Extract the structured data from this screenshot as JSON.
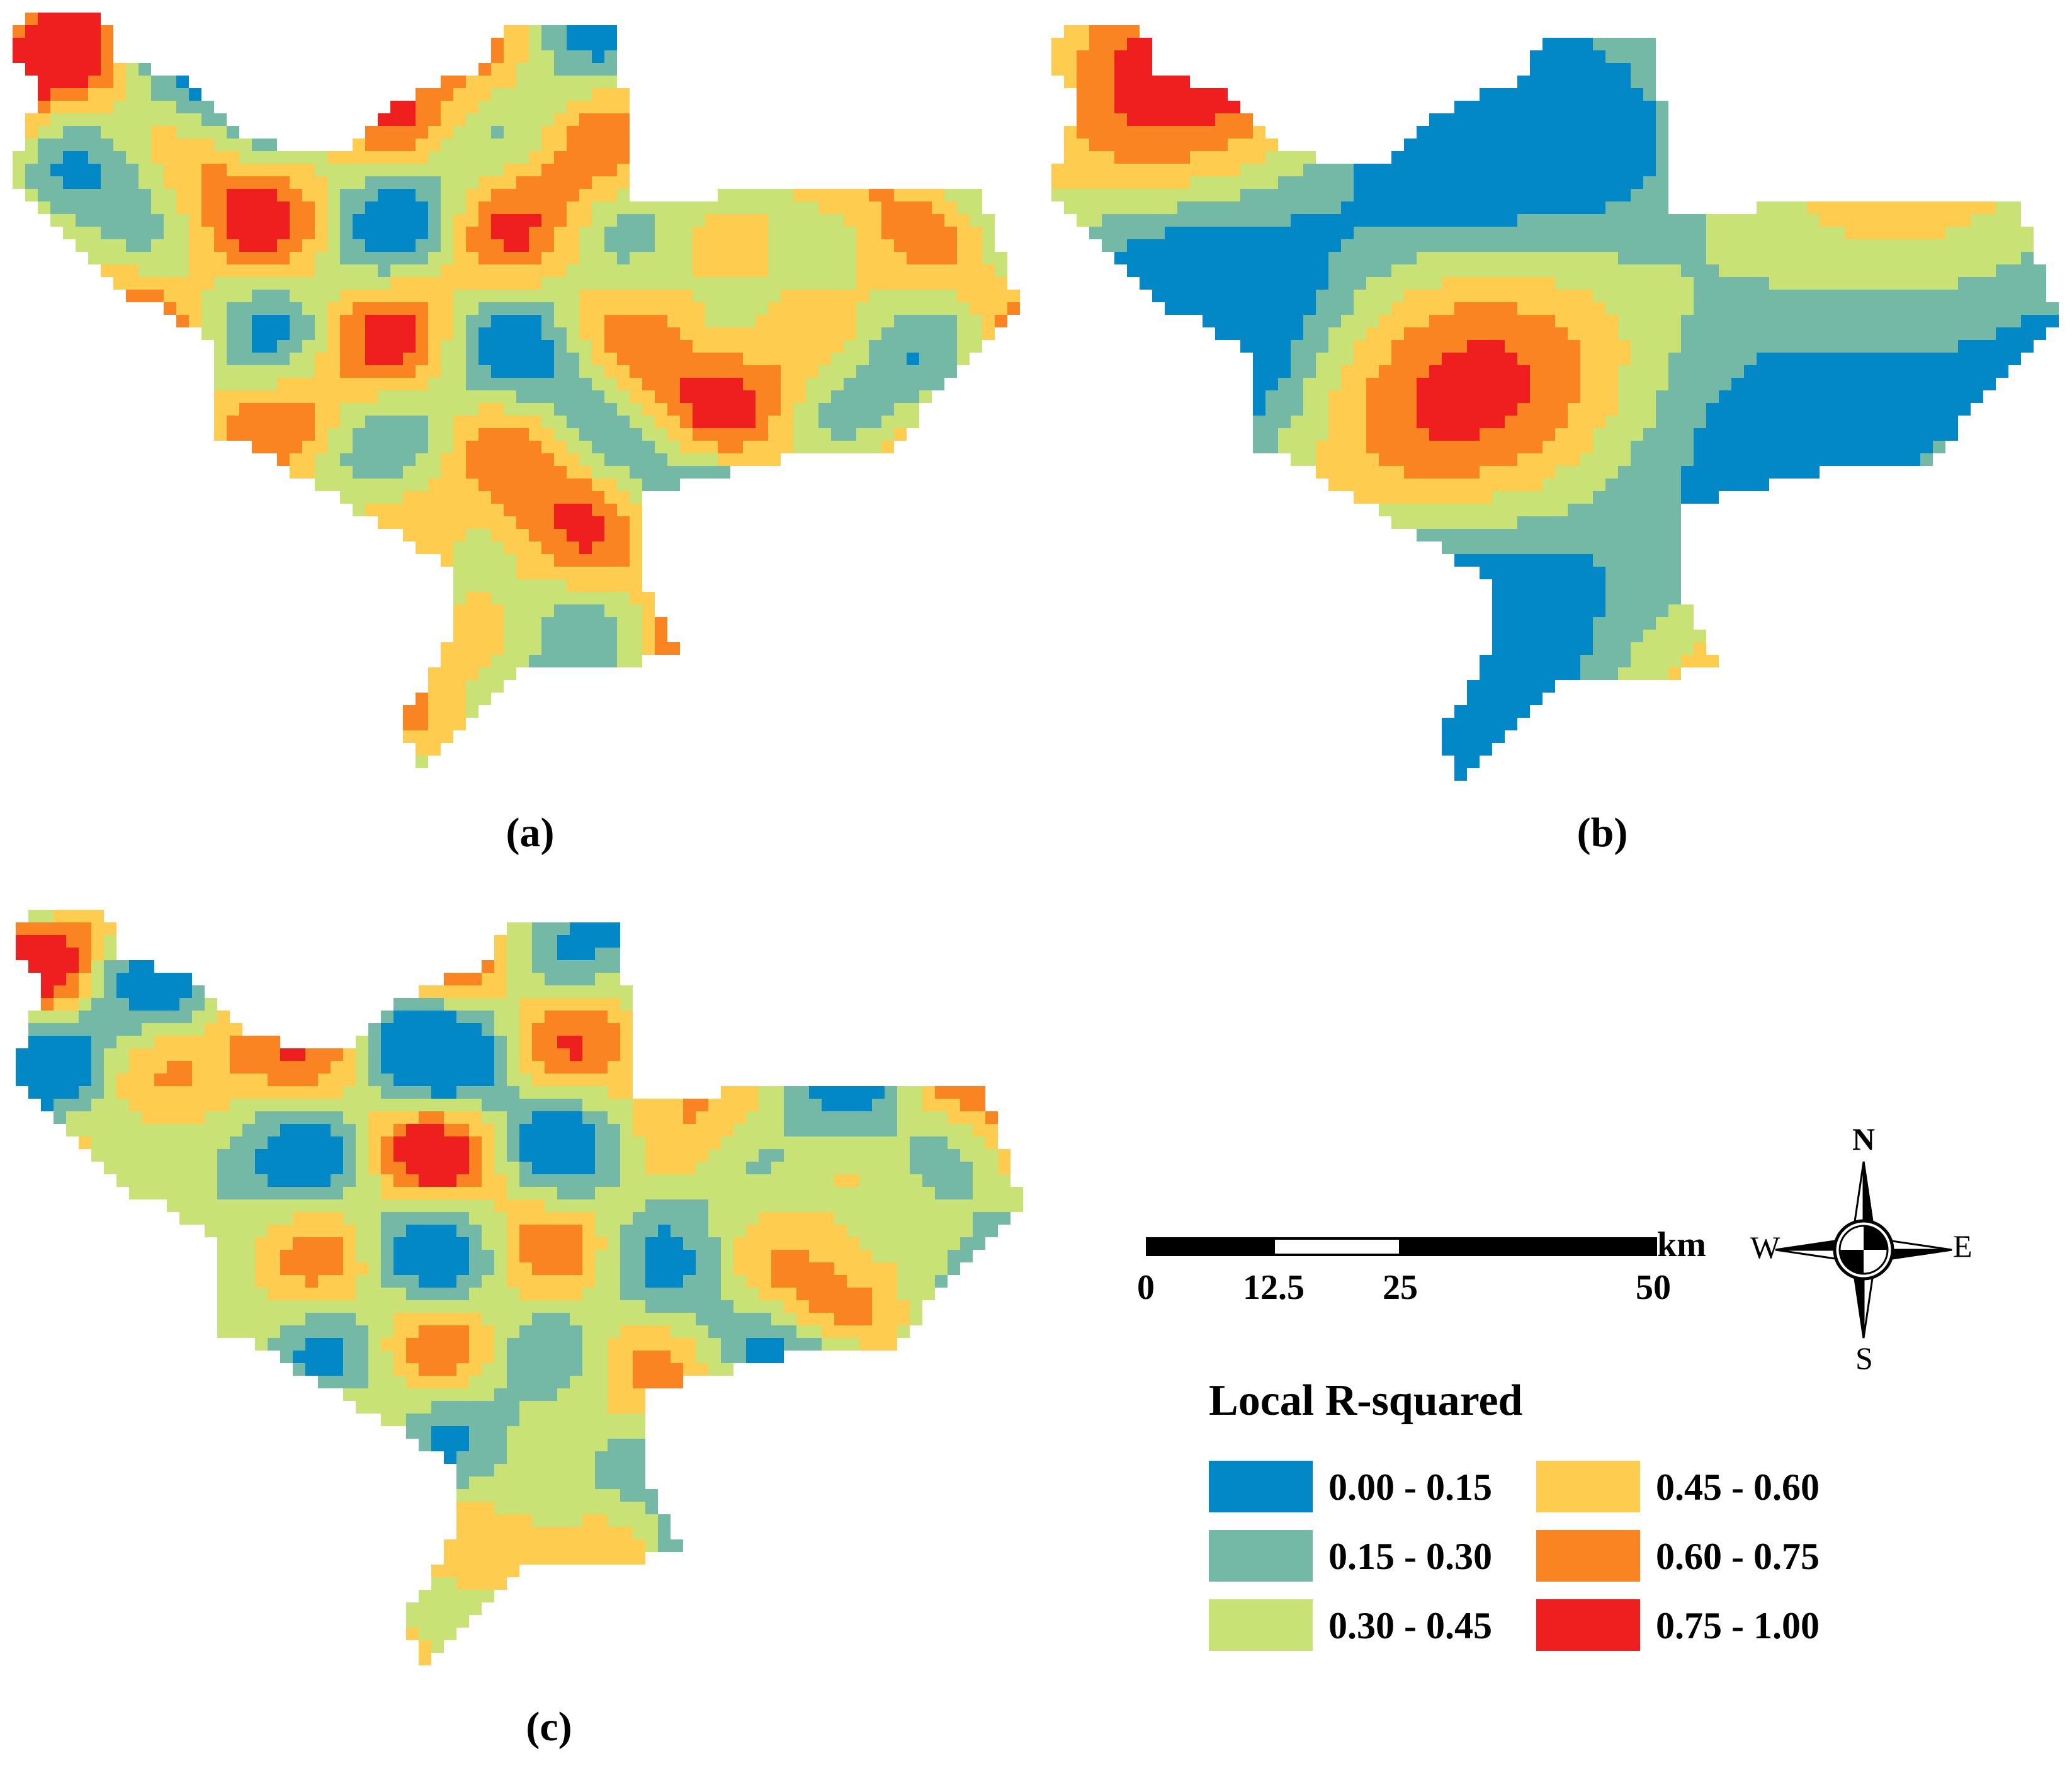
{
  "colors": {
    "c0": "#0288C6",
    "c1": "#74B8A6",
    "c2": "#C8E276",
    "c3": "#FECC4E",
    "c4": "#FB8422",
    "c5": "#EF1E1F"
  },
  "panels": {
    "a": {
      "label": "(a)"
    },
    "b": {
      "label": "(b)"
    },
    "c": {
      "label": "(c)"
    }
  },
  "scalebar": {
    "unit": "km",
    "ticks": [
      {
        "label": "0",
        "value": 0
      },
      {
        "label": "12.5",
        "value": 12.5
      },
      {
        "label": "25",
        "value": 25
      },
      {
        "label": "50",
        "value": 50
      }
    ]
  },
  "compass": {
    "north": "N",
    "south": "S",
    "east": "E",
    "west": "W"
  },
  "legend": {
    "title": "Local R-squared",
    "items": [
      {
        "label": "0.00 - 0.15",
        "color": "#0288C6"
      },
      {
        "label": "0.15 - 0.30",
        "color": "#74B8A6"
      },
      {
        "label": "0.30 - 0.45",
        "color": "#C8E276"
      },
      {
        "label": "0.45 - 0.60",
        "color": "#FECC4E"
      },
      {
        "label": "0.60 - 0.75",
        "color": "#FB8422"
      },
      {
        "label": "0.75 - 1.00",
        "color": "#EF1E1F"
      }
    ]
  }
}
